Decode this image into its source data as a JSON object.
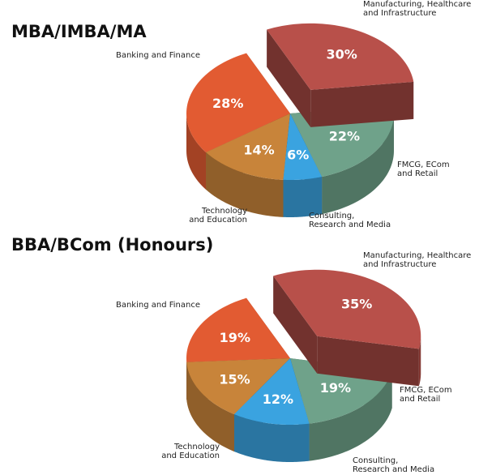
{
  "colors": {
    "manufacturing": "#b8504a",
    "fmcg": "#6fa28a",
    "consulting": "#3aa3e0",
    "technology": "#c8843a",
    "banking": "#e25b32"
  },
  "chart_data": [
    {
      "type": "pie",
      "title": "MBA/IMBA/MA",
      "slices": [
        {
          "key": "manufacturing",
          "label": "Manufacturing, Healthcare\nand Infrastructure",
          "value": 30,
          "value_label": "30%",
          "exploded": true
        },
        {
          "key": "fmcg",
          "label": "FMCG, ECom\nand Retail",
          "value": 22,
          "value_label": "22%",
          "exploded": false
        },
        {
          "key": "consulting",
          "label": "Consulting,\nResearch and Media",
          "value": 6,
          "value_label": "6%",
          "exploded": false
        },
        {
          "key": "technology",
          "label": "Technology\nand Education",
          "value": 14,
          "value_label": "14%",
          "exploded": false
        },
        {
          "key": "banking",
          "label": "Banking and Finance",
          "value": 28,
          "value_label": "28%",
          "exploded": false
        }
      ]
    },
    {
      "type": "pie",
      "title": "BBA/BCom (Honours)",
      "slices": [
        {
          "key": "manufacturing",
          "label": "Manufacturing, Healthcare\nand Infrastructure",
          "value": 35,
          "value_label": "35%",
          "exploded": true
        },
        {
          "key": "fmcg",
          "label": "FMCG, ECom\nand Retail",
          "value": 19,
          "value_label": "19%",
          "exploded": false
        },
        {
          "key": "consulting",
          "label": "Consulting,\nResearch and Media",
          "value": 12,
          "value_label": "12%",
          "exploded": false
        },
        {
          "key": "technology",
          "label": "Technology\nand Education",
          "value": 15,
          "value_label": "15%",
          "exploded": false
        },
        {
          "key": "banking",
          "label": "Banking and Finance",
          "value": 19,
          "value_label": "19%",
          "exploded": false
        }
      ]
    }
  ]
}
